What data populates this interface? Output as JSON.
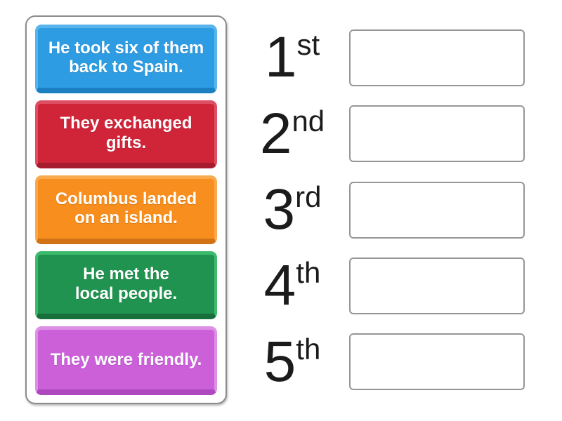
{
  "cards": [
    {
      "text": "He took six of them\nback to Spain.",
      "colors": {
        "main": "#2e9ce2",
        "light": "#5ab4ec",
        "dark": "#1c7fc2"
      }
    },
    {
      "text": "They exchanged\ngifts.",
      "colors": {
        "main": "#d02439",
        "light": "#dd5063",
        "dark": "#a61c2e"
      }
    },
    {
      "text": "Columbus landed\non an island.",
      "colors": {
        "main": "#f78e1d",
        "light": "#f9a94e",
        "dark": "#d17315"
      }
    },
    {
      "text": "He met the\nlocal people.",
      "colors": {
        "main": "#219350",
        "light": "#3eba6d",
        "dark": "#176f3b"
      }
    },
    {
      "text": "They were friendly.",
      "colors": {
        "main": "#cb60d9",
        "light": "#dd90e6",
        "dark": "#ae48be"
      }
    }
  ],
  "slots": [
    {
      "number": "1",
      "suffix": "st"
    },
    {
      "number": "2",
      "suffix": "nd"
    },
    {
      "number": "3",
      "suffix": "rd"
    },
    {
      "number": "4",
      "suffix": "th"
    },
    {
      "number": "5",
      "suffix": "th"
    }
  ],
  "ui": {
    "page_bg": "#ffffff",
    "panel_border": "#8c8c8c",
    "dropzone_border": "#969696",
    "ordinal_color": "#1b1b1b",
    "card_text_color": "#ffffff"
  }
}
